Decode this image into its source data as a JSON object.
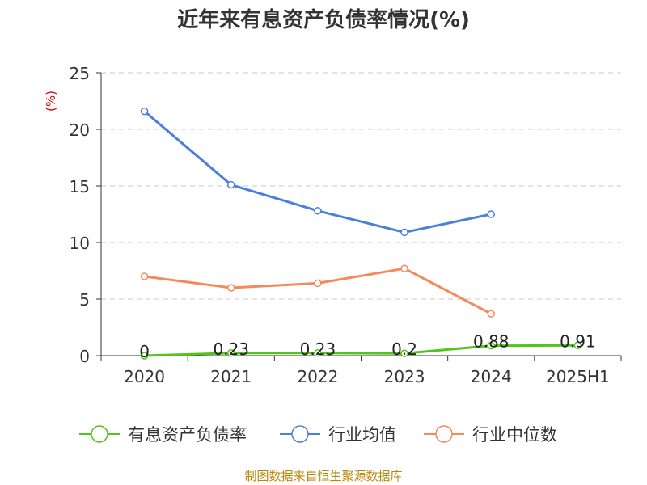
{
  "chart_data": {
    "type": "line",
    "title": "近年来有息资产负债率情况(%)",
    "ylabel": "(%)",
    "categories": [
      "2020",
      "2021",
      "2022",
      "2023",
      "2024",
      "2025H1"
    ],
    "ylim": [
      0,
      25
    ],
    "yticks": [
      "0",
      "5",
      "10",
      "15",
      "20",
      "25"
    ],
    "grid": true,
    "legend_position": "bottom",
    "series": [
      {
        "name": "有息资产负债率",
        "color": "#52c41a",
        "values": [
          0,
          0.23,
          0.23,
          0.2,
          0.88,
          0.91
        ],
        "data_labels": [
          "0",
          "0.23",
          "0.23",
          "0.2",
          "0.88",
          "0.91"
        ]
      },
      {
        "name": "行业均值",
        "color": "#4a7fdb",
        "values": [
          21.6,
          15.1,
          12.8,
          10.9,
          12.5,
          null
        ]
      },
      {
        "name": "行业中位数",
        "color": "#f5895a",
        "values": [
          7.0,
          6.0,
          6.4,
          7.7,
          3.7,
          null
        ]
      }
    ]
  },
  "source": "制图数据来自恒生聚源数据库"
}
